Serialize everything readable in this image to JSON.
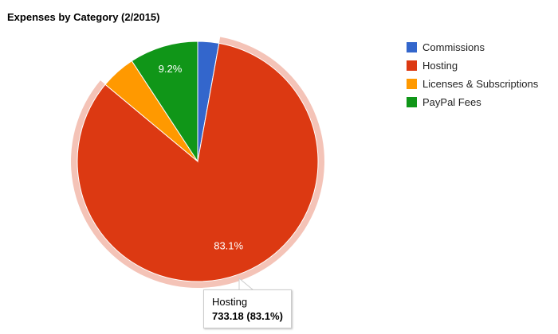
{
  "chart_data": {
    "type": "pie",
    "title": "Expenses by Category (2/2015)",
    "categories": [
      "Commissions",
      "Hosting",
      "Licenses & Subscriptions",
      "PayPal Fees"
    ],
    "values": [
      25.0,
      733.18,
      41.5,
      81.2
    ],
    "percent_labels": [
      "",
      "83.1%",
      "",
      "9.2%"
    ],
    "colors": [
      "#3366cc",
      "#dc3912",
      "#ff9900",
      "#109618"
    ],
    "legend_position": "right",
    "highlighted_category": "Hosting"
  },
  "tooltip": {
    "category": "Hosting",
    "value_text": "733.18 (83.1%)"
  }
}
